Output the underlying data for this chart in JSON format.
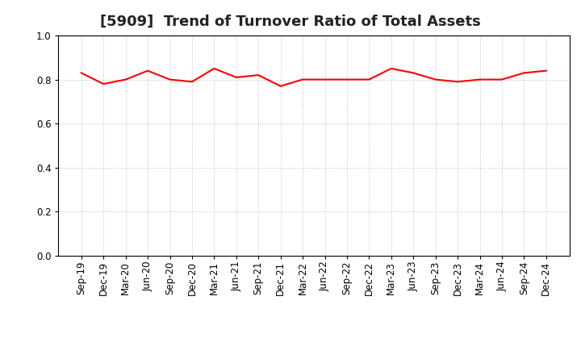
{
  "title": "[5909]  Trend of Turnover Ratio of Total Assets",
  "labels": [
    "Sep-19",
    "Dec-19",
    "Mar-20",
    "Jun-20",
    "Sep-20",
    "Dec-20",
    "Mar-21",
    "Jun-21",
    "Sep-21",
    "Dec-21",
    "Mar-22",
    "Jun-22",
    "Sep-22",
    "Dec-22",
    "Mar-23",
    "Jun-23",
    "Sep-23",
    "Dec-23",
    "Mar-24",
    "Jun-24",
    "Sep-24",
    "Dec-24"
  ],
  "values": [
    0.83,
    0.78,
    0.8,
    0.84,
    0.8,
    0.79,
    0.85,
    0.81,
    0.82,
    0.77,
    0.8,
    0.8,
    0.8,
    0.8,
    0.85,
    0.83,
    0.8,
    0.79,
    0.8,
    0.8,
    0.83,
    0.84
  ],
  "line_color": "#FF0000",
  "line_width": 1.5,
  "ylim": [
    0.0,
    1.0
  ],
  "yticks": [
    0.0,
    0.2,
    0.4,
    0.6,
    0.8,
    1.0
  ],
  "background_color": "#ffffff",
  "grid_color": "#aaaaaa",
  "title_fontsize": 13,
  "tick_fontsize": 8.5
}
